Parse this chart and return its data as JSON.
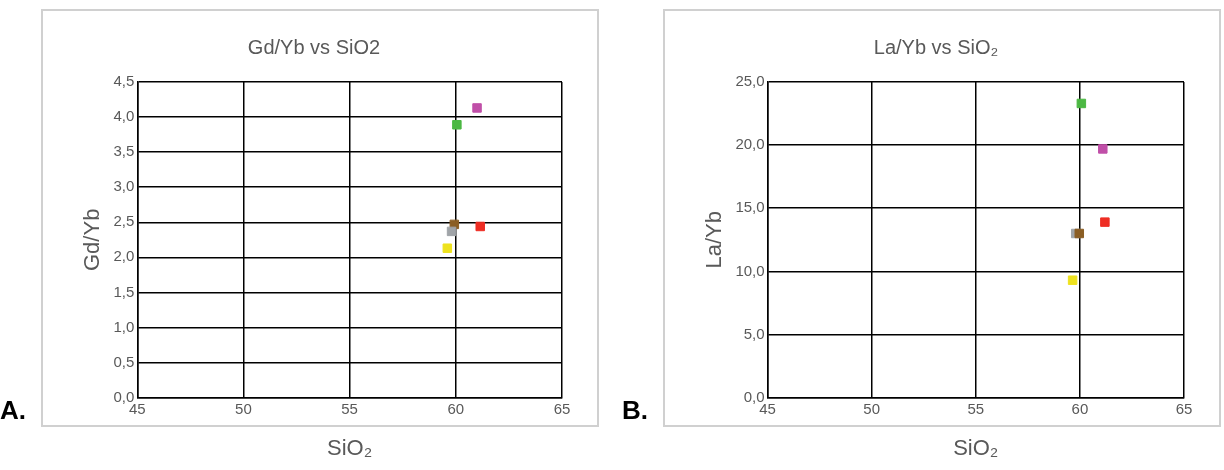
{
  "chart_data": [
    {
      "type": "scatter",
      "title": "Gd/Yb vs SiO2",
      "xlabel": "SiO₂",
      "ylabel": "Gd/Yb",
      "marker": "square",
      "grid": true,
      "legend": false,
      "x": [
        61.0,
        60.05,
        59.93,
        59.8,
        61.15,
        59.6
      ],
      "values": [
        4.13,
        3.89,
        2.47,
        2.37,
        2.44,
        2.13
      ],
      "colors": [
        "#c04fa8",
        "#4cb843",
        "#8b5e24",
        "#a0a4a8",
        "#ee2e24",
        "#eee21e"
      ],
      "xlim": [
        45,
        65
      ],
      "xticks": [
        45,
        50,
        55,
        60,
        65
      ],
      "ylim": [
        0,
        4.5
      ],
      "yticks": [
        {
          "value": 0,
          "label": "0,0"
        },
        {
          "value": 0.5,
          "label": "0,5"
        },
        {
          "value": 1,
          "label": "1,0"
        },
        {
          "value": 1.5,
          "label": "1,5"
        },
        {
          "value": 2,
          "label": "2,0"
        },
        {
          "value": 2.5,
          "label": "2,5"
        },
        {
          "value": 3,
          "label": "3,0"
        },
        {
          "value": 3.5,
          "label": "3,5"
        },
        {
          "value": 4,
          "label": "4,0"
        },
        {
          "value": 4.5,
          "label": "4,5"
        }
      ],
      "annotations": [
        "A."
      ]
    },
    {
      "type": "scatter",
      "title": "La/Yb vs SiO₂",
      "xlabel": "SiO₂",
      "ylabel": "La/Yb",
      "marker": "square",
      "grid": true,
      "legend": false,
      "x": [
        60.07,
        61.1,
        61.2,
        59.8,
        59.97,
        59.65
      ],
      "values": [
        23.3,
        19.7,
        13.9,
        13.0,
        13.0,
        9.3
      ],
      "colors": [
        "#4cb843",
        "#c04fa8",
        "#ee2e24",
        "#a0a4a8",
        "#8b5e24",
        "#eee21e"
      ],
      "xlim": [
        45,
        65
      ],
      "xticks": [
        45,
        50,
        55,
        60,
        65
      ],
      "ylim": [
        0,
        25
      ],
      "yticks": [
        {
          "value": 0,
          "label": "0,0"
        },
        {
          "value": 5,
          "label": "5,0"
        },
        {
          "value": 10,
          "label": "10,0"
        },
        {
          "value": 15,
          "label": "15,0"
        },
        {
          "value": 20,
          "label": "20,0"
        },
        {
          "value": 25,
          "label": "25,0"
        }
      ],
      "annotations": [
        "B."
      ]
    }
  ]
}
